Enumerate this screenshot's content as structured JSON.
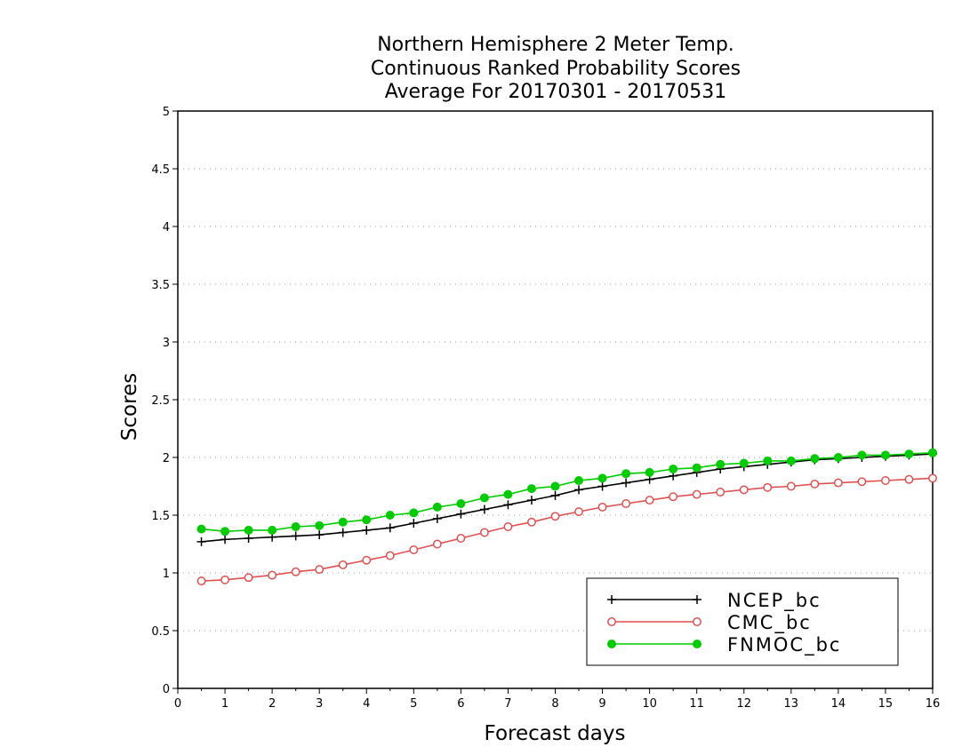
{
  "chart_data": {
    "type": "line",
    "title": [
      "Northern Hemisphere 2 Meter Temp.",
      "Continuous Ranked Probability Scores",
      "Average For 20170301 - 20170531"
    ],
    "xlabel": "Forecast days",
    "ylabel": "Scores",
    "xlim": [
      0,
      16
    ],
    "ylim": [
      0,
      5
    ],
    "xticks": [
      "0",
      "1",
      "2",
      "3",
      "4",
      "5",
      "6",
      "7",
      "8",
      "9",
      "10",
      "11",
      "12",
      "13",
      "14",
      "15",
      "16"
    ],
    "yticks": [
      "0",
      "0.5",
      "1",
      "1.5",
      "2",
      "2.5",
      "3",
      "3.5",
      "4",
      "4.5",
      "5"
    ],
    "grid": "horizontal dotted",
    "legend_position": "bottom-right",
    "x": [
      0.5,
      1,
      1.5,
      2,
      2.5,
      3,
      3.5,
      4,
      4.5,
      5,
      5.5,
      6,
      6.5,
      7,
      7.5,
      8,
      8.5,
      9,
      9.5,
      10,
      10.5,
      11,
      11.5,
      12,
      12.5,
      13,
      13.5,
      14,
      14.5,
      15,
      15.5,
      16
    ],
    "series": [
      {
        "name": "NCEP_bc",
        "color": "#000000",
        "marker": "plus",
        "values": [
          1.27,
          1.29,
          1.3,
          1.31,
          1.32,
          1.33,
          1.35,
          1.37,
          1.39,
          1.43,
          1.47,
          1.51,
          1.55,
          1.59,
          1.63,
          1.67,
          1.72,
          1.75,
          1.78,
          1.81,
          1.84,
          1.87,
          1.9,
          1.92,
          1.94,
          1.96,
          1.98,
          1.99,
          2.0,
          2.01,
          2.02,
          2.03
        ]
      },
      {
        "name": "CMC_bc",
        "color": "#e05050",
        "marker": "open-circle",
        "values": [
          0.93,
          0.94,
          0.96,
          0.98,
          1.01,
          1.03,
          1.07,
          1.11,
          1.15,
          1.2,
          1.25,
          1.3,
          1.35,
          1.4,
          1.44,
          1.49,
          1.53,
          1.57,
          1.6,
          1.63,
          1.66,
          1.68,
          1.7,
          1.72,
          1.74,
          1.75,
          1.77,
          1.78,
          1.79,
          1.8,
          1.81,
          1.82
        ]
      },
      {
        "name": "FNMOC_bc",
        "color": "#00cc00",
        "marker": "filled-circle",
        "values": [
          1.38,
          1.36,
          1.37,
          1.37,
          1.4,
          1.41,
          1.44,
          1.46,
          1.5,
          1.52,
          1.57,
          1.6,
          1.65,
          1.68,
          1.73,
          1.75,
          1.8,
          1.82,
          1.86,
          1.87,
          1.9,
          1.91,
          1.94,
          1.95,
          1.97,
          1.97,
          1.99,
          2.0,
          2.02,
          2.02,
          2.03,
          2.04
        ]
      }
    ]
  }
}
